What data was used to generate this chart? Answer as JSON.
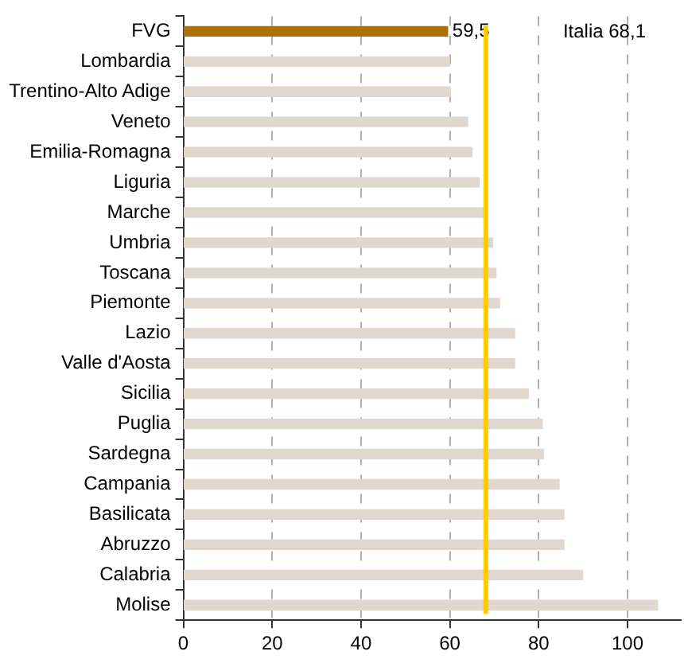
{
  "chart_data": {
    "type": "bar",
    "orientation": "horizontal",
    "categories": [
      "FVG",
      "Lombardia",
      "Trentino-Alto Adige",
      "Veneto",
      "Emilia-Romagna",
      "Liguria",
      "Marche",
      "Umbria",
      "Toscana",
      "Piemonte",
      "Lazio",
      "Valle d'Aosta",
      "Sicilia",
      "Puglia",
      "Sardegna",
      "Campania",
      "Basilicata",
      "Abruzzo",
      "Calabria",
      "Molise"
    ],
    "values": [
      59.5,
      59.9,
      60.1,
      64,
      65,
      66.6,
      67.6,
      69.6,
      70.4,
      71.2,
      74.6,
      74.6,
      77.7,
      80.8,
      81.1,
      84.6,
      85.7,
      85.7,
      89.9,
      106.8
    ],
    "colors": [
      "#b07000",
      "#e0d8ce",
      "#e0d8ce",
      "#e0d8ce",
      "#e0d8ce",
      "#e0d8ce",
      "#e0d8ce",
      "#e0d8ce",
      "#e0d8ce",
      "#e0d8ce",
      "#e0d8ce",
      "#e0d8ce",
      "#e0d8ce",
      "#e0d8ce",
      "#e0d8ce",
      "#e0d8ce",
      "#e0d8ce",
      "#e0d8ce",
      "#e0d8ce",
      "#e0d8ce"
    ],
    "value_labels": [
      "59,5",
      null,
      null,
      null,
      null,
      null,
      null,
      null,
      null,
      null,
      null,
      null,
      null,
      null,
      null,
      null,
      null,
      null,
      null,
      null
    ],
    "xlim": [
      0,
      112
    ],
    "xticks": [
      0,
      20,
      40,
      60,
      80,
      100
    ],
    "grid": "x",
    "legend": false,
    "annotations": [
      "Italia 68,1"
    ],
    "ref_lines": [
      {
        "axis": "x",
        "value": 68.1,
        "color": "#ffcc00"
      }
    ]
  }
}
